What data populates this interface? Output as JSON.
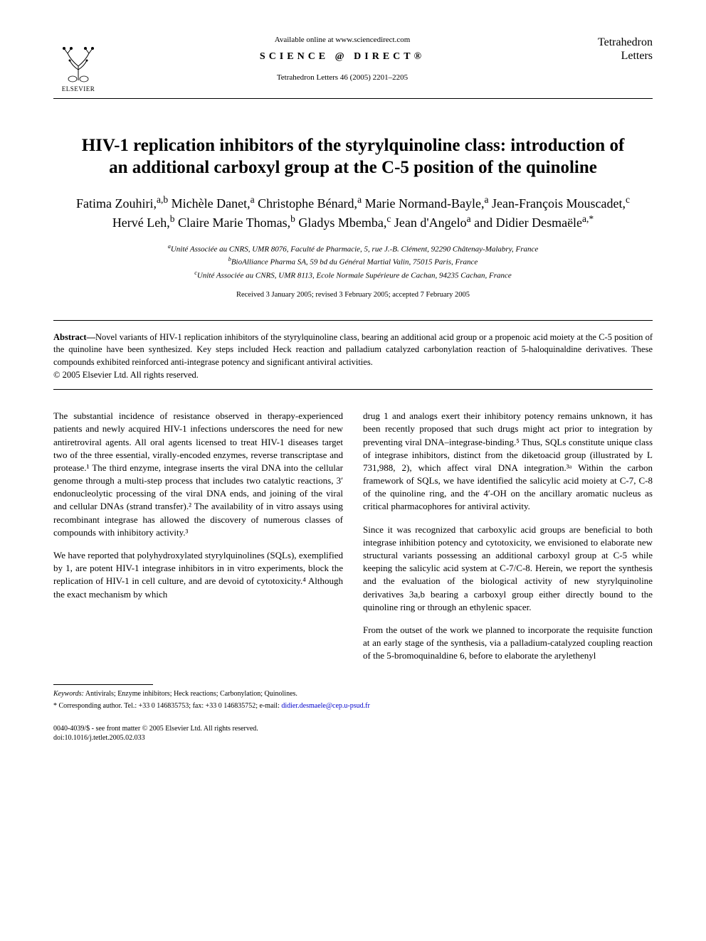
{
  "header": {
    "available_online": "Available online at www.sciencedirect.com",
    "science_direct": "SCIENCE @ DIRECT®",
    "journal_ref": "Tetrahedron Letters 46 (2005) 2201–2205",
    "publisher_label": "ELSEVIER",
    "journal_name_line1": "Tetrahedron",
    "journal_name_line2": "Letters"
  },
  "title": "HIV-1 replication inhibitors of the styrylquinoline class: introduction of an additional carboxyl group at the C-5 position of the quinoline",
  "authors_html": "Fatima Zouhiri,<sup>a,b</sup> Michèle Danet,<sup>a</sup> Christophe Bénard,<sup>a</sup> Marie Normand-Bayle,<sup>a</sup> Jean-François Mouscadet,<sup>c</sup> Hervé Leh,<sup>b</sup> Claire Marie Thomas,<sup>b</sup> Gladys Mbemba,<sup>c</sup> Jean d'Angelo<sup>a</sup> and Didier Desmaële<sup>a,*</sup>",
  "affiliations": {
    "a": "Unité Associée au CNRS, UMR 8076, Faculté de Pharmacie, 5, rue J.-B. Clément, 92290 Châtenay-Malabry, France",
    "b": "BioAlliance Pharma SA, 59 bd du Général Martial Valin, 75015 Paris, France",
    "c": "Unité Associée au CNRS, UMR 8113, Ecole Normale Supérieure de Cachan, 94235 Cachan, France"
  },
  "dates": "Received 3 January 2005; revised 3 February 2005; accepted 7 February 2005",
  "abstract": {
    "label": "Abstract—",
    "text": "Novel variants of HIV-1 replication inhibitors of the styrylquinoline class, bearing an additional acid group or a propenoic acid moiety at the C-5 position of the quinoline have been synthesized. Key steps included Heck reaction and palladium catalyzed carbonylation reaction of 5-haloquinaldine derivatives. These compounds exhibited reinforced anti-integrase potency and significant antiviral activities."
  },
  "copyright": "© 2005 Elsevier Ltd. All rights reserved.",
  "body": {
    "p1": "The substantial incidence of resistance observed in therapy-experienced patients and newly acquired HIV-1 infections underscores the need for new antiretroviral agents. All oral agents licensed to treat HIV-1 diseases target two of the three essential, virally-encoded enzymes, reverse transcriptase and protease.¹ The third enzyme, integrase inserts the viral DNA into the cellular genome through a multi-step process that includes two catalytic reactions, 3′ endonucleolytic processing of the viral DNA ends, and joining of the viral and cellular DNAs (strand transfer).² The availability of in vitro assays using recombinant integrase has allowed the discovery of numerous classes of compounds with inhibitory activity.³",
    "p2": "We have reported that polyhydroxylated styrylquinolines (SQLs), exemplified by 1, are potent HIV-1 integrase inhibitors in in vitro experiments, block the replication of HIV-1 in cell culture, and are devoid of cytotoxicity.⁴ Although the exact mechanism by which",
    "p3": "drug 1 and analogs exert their inhibitory potency remains unknown, it has been recently proposed that such drugs might act prior to integration by preventing viral DNA–integrase-binding.⁵ Thus, SQLs constitute unique class of integrase inhibitors, distinct from the diketoacid group (illustrated by L 731,988, 2), which affect viral DNA integration.³ᵃ Within the carbon framework of SQLs, we have identified the salicylic acid moiety at C-7, C-8 of the quinoline ring, and the 4′-OH on the ancillary aromatic nucleus as critical pharmacophores for antiviral activity.",
    "p4": "Since it was recognized that carboxylic acid groups are beneficial to both integrase inhibition potency and cytotoxicity, we envisioned to elaborate new structural variants possessing an additional carboxyl group at C-5 while keeping the salicylic acid system at C-7/C-8. Herein, we report the synthesis and the evaluation of the biological activity of new styrylquinoline derivatives 3a,b bearing a carboxyl group either directly bound to the quinoline ring or through an ethylenic spacer.",
    "p5": "From the outset of the work we planned to incorporate the requisite function at an early stage of the synthesis, via a palladium-catalyzed coupling reaction of the 5-bromoquinaldine 6, before to elaborate the arylethenyl"
  },
  "footer": {
    "keywords_label": "Keywords:",
    "keywords": "Antivirals; Enzyme inhibitors; Heck reactions; Carbonylation; Quinolines.",
    "corresponding": "* Corresponding author. Tel.: +33 0 146835753; fax: +33 0 146835752; e-mail:",
    "email": "didier.desmaele@cep.u-psud.fr",
    "front_matter": "0040-4039/$ - see front matter © 2005 Elsevier Ltd. All rights reserved.",
    "doi": "doi:10.1016/j.tetlet.2005.02.033"
  },
  "colors": {
    "text": "#000000",
    "background": "#ffffff",
    "link": "#0000cc"
  },
  "typography": {
    "title_fontsize": 25,
    "authors_fontsize": 18,
    "body_fontsize": 13,
    "abstract_fontsize": 12.5,
    "affiliation_fontsize": 11,
    "footer_fontsize": 10
  }
}
